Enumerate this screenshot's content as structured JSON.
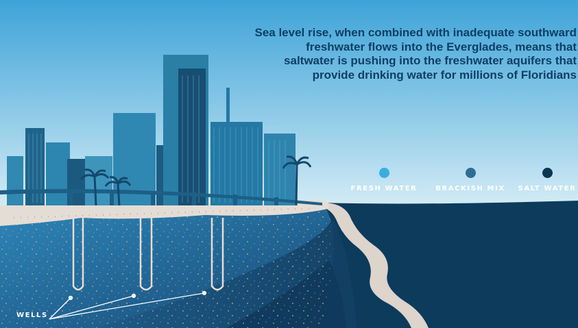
{
  "caption": {
    "line1": "Sea level rise, when combined with inadequate southward",
    "line2": "freshwater flows into the Everglades, means that",
    "line3": "saltwater is pushing into the freshwater aquifers that",
    "line4": "provide drinking water for millions of Floridians"
  },
  "legend": {
    "items": [
      {
        "label": "FRESH WATER",
        "color": "#3aaee0"
      },
      {
        "label": "BRACKISH MIX",
        "color": "#2f6d94"
      },
      {
        "label": "SALT WATER",
        "color": "#0b3552"
      }
    ]
  },
  "wells": {
    "label": "WELLS",
    "count": 3
  },
  "colors": {
    "sky_top": "#3ea3d8",
    "sky_bottom": "#c9e6f4",
    "ocean": "#0d3b5c",
    "sand": "#ddd4cc",
    "aquifer_fresh": "#2b7fb0",
    "city": "#2a7fa6"
  }
}
